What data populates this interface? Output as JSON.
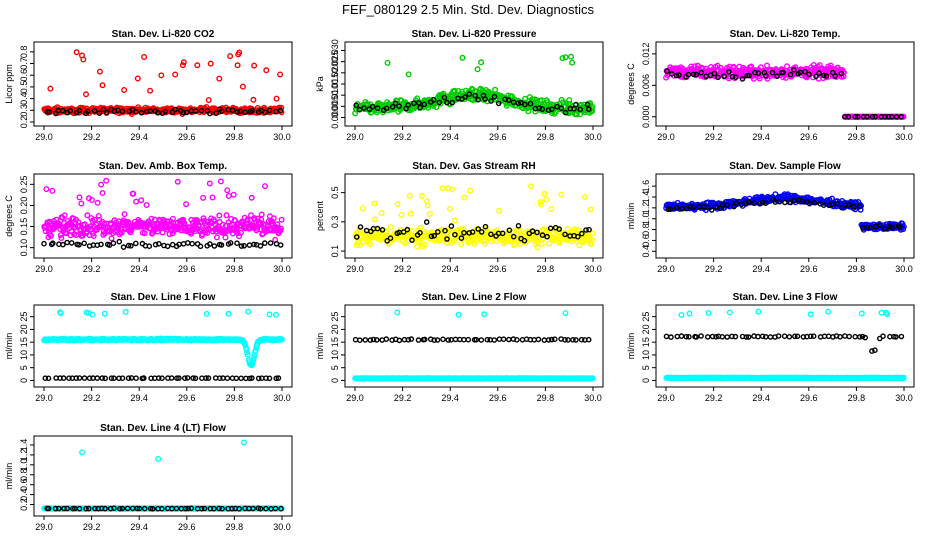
{
  "figure_title": "FEF_080129  2.5 Min. Std. Dev. Diagnostics",
  "colors": {
    "black_series": "#000000",
    "frame": "#000000"
  },
  "chart_data": [
    {
      "type": "scatter",
      "title": "Stan. Dev. Li-820 CO2",
      "ylabel": "Licor ppm",
      "xlim": [
        29.0,
        30.0
      ],
      "xticks": [
        "29.0",
        "29.2",
        "29.4",
        "29.6",
        "29.8",
        "30.0"
      ],
      "ylim": [
        0.2,
        0.85
      ],
      "yticks": [
        "0.2",
        "0.3",
        "0.4",
        "0.5",
        "0.6",
        "0.7",
        "0.8"
      ],
      "ytick_values": [
        0.2,
        0.3,
        0.4,
        0.5,
        0.6,
        0.7,
        0.8
      ],
      "series": [
        {
          "name": "main",
          "color": "#ff0000",
          "pattern": "noisy",
          "base": 0.3,
          "spread": 0.035,
          "outlier_prob": 0.06,
          "outlier_range": [
            0.38,
            0.8
          ]
        },
        {
          "name": "black",
          "color": "#000000",
          "pattern": "sparse",
          "base": 0.29,
          "spread": 0.03
        }
      ]
    },
    {
      "type": "scatter",
      "title": "Stan. Dev. Li-820 Pressure",
      "ylabel": "kPa",
      "xlim": [
        29.0,
        30.0
      ],
      "xticks": [
        "29.0",
        "29.2",
        "29.4",
        "29.6",
        "29.8",
        "30.0"
      ],
      "ylim": [
        -0.002,
        0.032
      ],
      "yticks": [
        "0.000",
        "0.005",
        "0.010",
        "0.015",
        "0.020",
        "0.025",
        "0.030"
      ],
      "ytick_values": [
        0,
        0.005,
        0.01,
        0.015,
        0.02,
        0.025,
        0.03
      ],
      "series": [
        {
          "name": "main",
          "color": "#00cc00",
          "pattern": "hump",
          "base": 0.004,
          "peak": 0.01,
          "spread": 0.004,
          "outlier_prob": 0.02,
          "outlier_range": [
            0.018,
            0.031
          ]
        },
        {
          "name": "black",
          "color": "#000000",
          "pattern": "sparse-hump",
          "base": 0.004,
          "peak": 0.009,
          "spread": 0.003
        }
      ]
    },
    {
      "type": "scatter",
      "title": "Stan. Dev. Li-820 Temp.",
      "ylabel": "degrees C",
      "xlim": [
        29.0,
        30.0
      ],
      "xticks": [
        "29.0",
        "29.2",
        "29.4",
        "29.6",
        "29.8",
        "30.0"
      ],
      "ylim": [
        -0.001,
        0.0135
      ],
      "yticks": [
        "0.000",
        "0.006",
        "0.012"
      ],
      "ytick_values": [
        0,
        0.006,
        0.012
      ],
      "series": [
        {
          "name": "main",
          "color": "#ff00ff",
          "pattern": "step",
          "base": 0.0085,
          "spread": 0.0017,
          "step_at": 29.75,
          "after": 0.0
        },
        {
          "name": "black",
          "color": "#000000",
          "pattern": "sparse-step",
          "base": 0.008,
          "spread": 0.0014,
          "step_at": 29.75,
          "after": 0.0
        }
      ]
    },
    {
      "type": "scatter",
      "title": "Stan. Dev. Amb. Box Temp.",
      "ylabel": "degrees C",
      "xlim": [
        29.0,
        30.0
      ],
      "xticks": [
        "29.0",
        "29.2",
        "29.4",
        "29.6",
        "29.8",
        "30.0"
      ],
      "ylim": [
        0.085,
        0.265
      ],
      "yticks": [
        "0.10",
        "0.15",
        "0.20",
        "0.25"
      ],
      "ytick_values": [
        0.1,
        0.15,
        0.2,
        0.25
      ],
      "series": [
        {
          "name": "main",
          "color": "#ff00ff",
          "pattern": "noisy",
          "base": 0.15,
          "spread": 0.035,
          "outlier_prob": 0.05,
          "outlier_range": [
            0.2,
            0.26
          ]
        },
        {
          "name": "black",
          "color": "#000000",
          "pattern": "sparse",
          "base": 0.108,
          "spread": 0.008
        }
      ]
    },
    {
      "type": "scatter",
      "title": "Stan. Dev. Gas Stream RH",
      "ylabel": "percent",
      "xlim": [
        29.0,
        30.0
      ],
      "xticks": [
        "29.0",
        "29.2",
        "29.4",
        "29.6",
        "29.8",
        "30.0"
      ],
      "ylim": [
        0.08,
        0.6
      ],
      "yticks": [
        "0.1",
        "0.3",
        "0.5"
      ],
      "ytick_values": [
        0.1,
        0.3,
        0.5
      ],
      "series": [
        {
          "name": "main",
          "color": "#ffff00",
          "pattern": "noisy",
          "base": 0.2,
          "spread": 0.08,
          "outlier_prob": 0.08,
          "outlier_range": [
            0.3,
            0.55
          ]
        },
        {
          "name": "black",
          "color": "#000000",
          "pattern": "sparse",
          "base": 0.22,
          "spread": 0.09
        }
      ]
    },
    {
      "type": "scatter",
      "title": "Stan. Dev. Sample Flow",
      "ylabel": "ml/min",
      "xlim": [
        29.0,
        30.0
      ],
      "xticks": [
        "29.0",
        "29.2",
        "29.4",
        "29.6",
        "29.8",
        "30.0"
      ],
      "ylim": [
        0.35,
        1.75
      ],
      "yticks": [
        "0.4",
        "0.6",
        "0.8",
        "1.0",
        "1.2",
        "1.4",
        "1.6"
      ],
      "ytick_values": [
        0.4,
        0.6,
        0.8,
        1.0,
        1.2,
        1.4,
        1.6
      ],
      "series": [
        {
          "name": "main",
          "color": "#0000ff",
          "pattern": "hump-drop",
          "base": 1.22,
          "peak": 1.38,
          "spread": 0.09,
          "drop_at": 29.82,
          "after": 0.85
        },
        {
          "name": "black",
          "color": "#000000",
          "pattern": "sparse-hump-drop",
          "base": 1.2,
          "peak": 1.32,
          "spread": 0.06,
          "drop_at": 29.82,
          "after": 0.85
        }
      ]
    },
    {
      "type": "scatter",
      "title": "Stan. Dev. Line 1 Flow",
      "ylabel": "ml/min",
      "xlim": [
        29.0,
        30.0
      ],
      "xticks": [
        "29.0",
        "29.2",
        "29.4",
        "29.6",
        "29.8",
        "30.0"
      ],
      "ylim": [
        -1,
        28
      ],
      "yticks": [
        "0",
        "5",
        "10",
        "15",
        "20",
        "25"
      ],
      "ytick_values": [
        0,
        5,
        10,
        15,
        20,
        25
      ],
      "series": [
        {
          "name": "main",
          "color": "#00ffff",
          "pattern": "flat-dip",
          "base": 16.0,
          "spread": 0.5,
          "dip_at": 29.87,
          "dip_depth": 10,
          "outlier_prob": 0.02,
          "outlier_range": [
            25.5,
            27
          ]
        },
        {
          "name": "black",
          "color": "#000000",
          "pattern": "flat",
          "base": 0.9,
          "spread": 0.15
        }
      ]
    },
    {
      "type": "scatter",
      "title": "Stan. Dev. Line 2 Flow",
      "ylabel": "ml/min",
      "xlim": [
        29.0,
        30.0
      ],
      "xticks": [
        "29.0",
        "29.2",
        "29.4",
        "29.6",
        "29.8",
        "30.0"
      ],
      "ylim": [
        -1,
        28
      ],
      "yticks": [
        "0",
        "5",
        "10",
        "15",
        "20",
        "25"
      ],
      "ytick_values": [
        0,
        5,
        10,
        15,
        20,
        25
      ],
      "series": [
        {
          "name": "main",
          "color": "#00ffff",
          "pattern": "flat",
          "base": 0.8,
          "spread": 0.15,
          "outlier_prob": 0.02,
          "outlier_range": [
            25.5,
            27
          ]
        },
        {
          "name": "black",
          "color": "#000000",
          "pattern": "flat",
          "base": 16.0,
          "spread": 0.4
        }
      ]
    },
    {
      "type": "scatter",
      "title": "Stan. Dev. Line 3 Flow",
      "ylabel": "ml/min",
      "xlim": [
        29.0,
        30.0
      ],
      "xticks": [
        "29.0",
        "29.2",
        "29.4",
        "29.6",
        "29.8",
        "30.0"
      ],
      "ylim": [
        -1,
        28
      ],
      "yticks": [
        "0",
        "5",
        "10",
        "15",
        "20",
        "25"
      ],
      "ytick_values": [
        0,
        5,
        10,
        15,
        20,
        25
      ],
      "series": [
        {
          "name": "main",
          "color": "#00ffff",
          "pattern": "flat",
          "base": 1.0,
          "spread": 0.15,
          "outlier_prob": 0.02,
          "outlier_range": [
            25.5,
            27
          ]
        },
        {
          "name": "black",
          "color": "#000000",
          "pattern": "flat-dip",
          "base": 17.2,
          "spread": 0.4,
          "dip_at": 29.87,
          "dip_depth": 6
        }
      ]
    },
    {
      "type": "scatter",
      "title": "Stan. Dev. Line 4 (LT) Flow",
      "ylabel": "ml/min",
      "xlim": [
        29.0,
        30.0
      ],
      "xticks": [
        "29.0",
        "29.2",
        "29.4",
        "29.6",
        "29.8",
        "30.0"
      ],
      "ylim": [
        0.05,
        1.5
      ],
      "yticks": [
        "0.2",
        "0.4",
        "0.6",
        "0.8",
        "1.0",
        "1.2",
        "1.4"
      ],
      "ytick_values": [
        0.2,
        0.4,
        0.6,
        0.8,
        1.0,
        1.2,
        1.4
      ],
      "series": [
        {
          "name": "main",
          "color": "#00ffff",
          "pattern": "flat",
          "base": 0.12,
          "spread": 0.01,
          "outlier_points": [
            [
              29.16,
              1.25
            ],
            [
              29.48,
              1.12
            ],
            [
              29.84,
              1.45
            ]
          ]
        },
        {
          "name": "black",
          "color": "#000000",
          "pattern": "flat",
          "base": 0.12,
          "spread": 0.008
        }
      ]
    }
  ]
}
